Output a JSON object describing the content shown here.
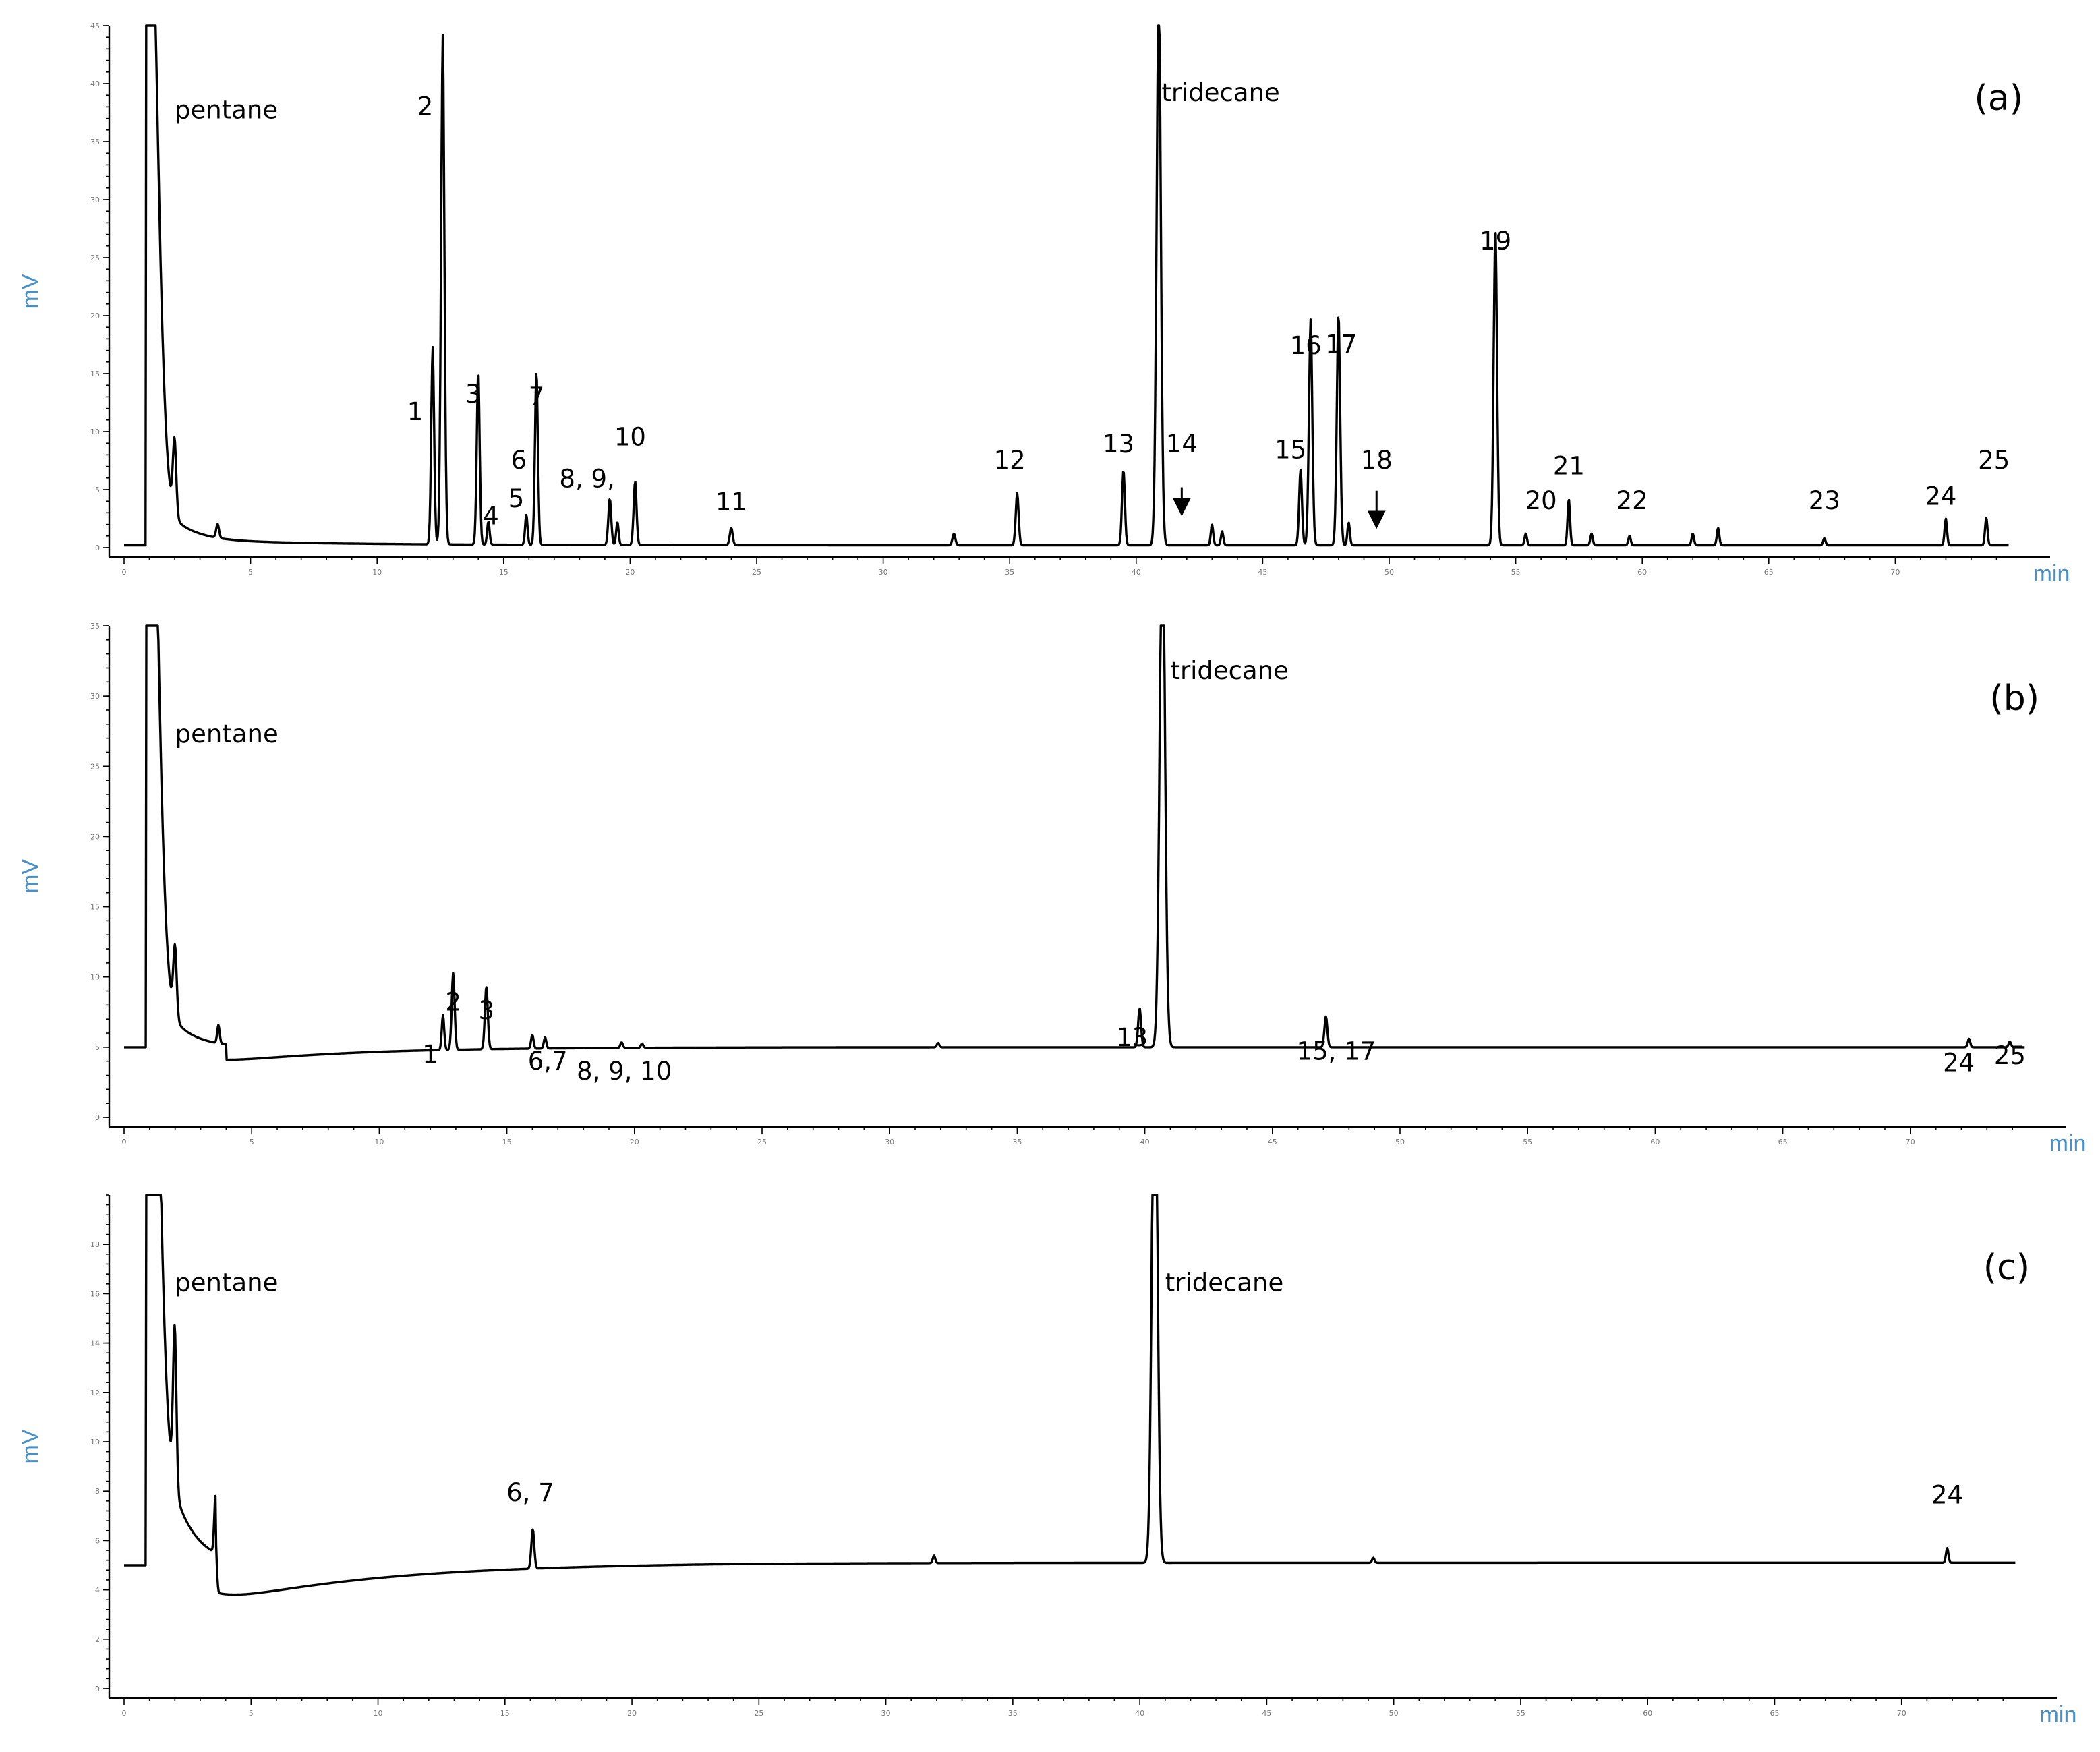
{
  "chart_data": [
    {
      "type": "line",
      "panel_label": "(a)",
      "xlabel": "min",
      "ylabel": "mV",
      "xlim": [
        0,
        75
      ],
      "ylim": [
        0,
        45
      ],
      "x_ticks": [
        0,
        5,
        10,
        15,
        20,
        25,
        30,
        35,
        40,
        45,
        50,
        55,
        60,
        65,
        70
      ],
      "y_ticks": [
        0,
        5,
        10,
        15,
        20,
        25,
        30,
        35,
        40,
        45
      ],
      "baseline": 0.2,
      "peaks": [
        {
          "rt": 1.0,
          "height": 60,
          "width": 0.35
        },
        {
          "rt": 2.0,
          "height": 6.5,
          "width": 0.07
        },
        {
          "rt": 3.7,
          "height": 1.2,
          "width": 0.06
        },
        {
          "rt": 12.2,
          "height": 17,
          "width": 0.06
        },
        {
          "rt": 12.6,
          "height": 44,
          "width": 0.07
        },
        {
          "rt": 14.0,
          "height": 15,
          "width": 0.06
        },
        {
          "rt": 14.4,
          "height": 2.0,
          "width": 0.05
        },
        {
          "rt": 15.9,
          "height": 2.6,
          "width": 0.05
        },
        {
          "rt": 16.3,
          "height": 15,
          "width": 0.06
        },
        {
          "rt": 19.2,
          "height": 4.0,
          "width": 0.06
        },
        {
          "rt": 19.5,
          "height": 2.0,
          "width": 0.05
        },
        {
          "rt": 20.2,
          "height": 5.5,
          "width": 0.06
        },
        {
          "rt": 24.0,
          "height": 1.5,
          "width": 0.06
        },
        {
          "rt": 32.8,
          "height": 1.0,
          "width": 0.06
        },
        {
          "rt": 35.3,
          "height": 4.5,
          "width": 0.06
        },
        {
          "rt": 39.5,
          "height": 6.5,
          "width": 0.06
        },
        {
          "rt": 40.9,
          "height": 48,
          "width": 0.09
        },
        {
          "rt": 43.0,
          "height": 1.8,
          "width": 0.05
        },
        {
          "rt": 43.4,
          "height": 1.2,
          "width": 0.05
        },
        {
          "rt": 46.5,
          "height": 6.5,
          "width": 0.06
        },
        {
          "rt": 46.9,
          "height": 19.5,
          "width": 0.07
        },
        {
          "rt": 48.0,
          "height": 20.0,
          "width": 0.07
        },
        {
          "rt": 48.4,
          "height": 2.0,
          "width": 0.05
        },
        {
          "rt": 54.2,
          "height": 27.5,
          "width": 0.07
        },
        {
          "rt": 55.4,
          "height": 1.0,
          "width": 0.05
        },
        {
          "rt": 57.1,
          "height": 4.0,
          "width": 0.05
        },
        {
          "rt": 58.0,
          "height": 1.0,
          "width": 0.05
        },
        {
          "rt": 59.5,
          "height": 0.8,
          "width": 0.05
        },
        {
          "rt": 62.0,
          "height": 1.0,
          "width": 0.05
        },
        {
          "rt": 63.0,
          "height": 1.5,
          "width": 0.05
        },
        {
          "rt": 67.2,
          "height": 0.6,
          "width": 0.05
        },
        {
          "rt": 72.0,
          "height": 2.3,
          "width": 0.05
        },
        {
          "rt": 73.6,
          "height": 2.4,
          "width": 0.05
        }
      ],
      "annotations": [
        {
          "text": "pentane",
          "x": 2.0,
          "y": 37
        },
        {
          "text": "2",
          "x": 11.9,
          "y": 37.3
        },
        {
          "text": "1",
          "x": 11.5,
          "y": 11
        },
        {
          "text": "3",
          "x": 13.8,
          "y": 12.5
        },
        {
          "text": "4",
          "x": 14.5,
          "y": 2
        },
        {
          "text": "5",
          "x": 15.5,
          "y": 3.5
        },
        {
          "text": "6",
          "x": 15.6,
          "y": 6.8
        },
        {
          "text": "7",
          "x": 16.3,
          "y": 12.3
        },
        {
          "text": "8, 9,",
          "x": 18.3,
          "y": 5.2
        },
        {
          "text": "10",
          "x": 20.0,
          "y": 8.8
        },
        {
          "text": "11",
          "x": 24.0,
          "y": 3.2
        },
        {
          "text": "12",
          "x": 35.0,
          "y": 6.8
        },
        {
          "text": "13",
          "x": 39.3,
          "y": 8.2
        },
        {
          "text": "tridecane",
          "x": 41.0,
          "y": 38.5
        },
        {
          "text": "14",
          "x": 41.8,
          "y": 8.2
        },
        {
          "text": "15",
          "x": 46.1,
          "y": 7.7
        },
        {
          "text": "16",
          "x": 46.7,
          "y": 16.7
        },
        {
          "text": "17",
          "x": 48.1,
          "y": 16.8
        },
        {
          "text": "18",
          "x": 49.5,
          "y": 6.8
        },
        {
          "text": "19",
          "x": 54.2,
          "y": 25.7
        },
        {
          "text": "20",
          "x": 56.0,
          "y": 3.3
        },
        {
          "text": "21",
          "x": 57.1,
          "y": 6.3
        },
        {
          "text": "22",
          "x": 59.6,
          "y": 3.3
        },
        {
          "text": "23",
          "x": 67.2,
          "y": 3.3
        },
        {
          "text": "24",
          "x": 71.8,
          "y": 3.7
        },
        {
          "text": "25",
          "x": 73.9,
          "y": 6.8
        }
      ],
      "arrows": [
        {
          "x": 41.8,
          "y_from": 5.2,
          "y_to": 2.9
        },
        {
          "x": 49.5,
          "y_from": 4.9,
          "y_to": 1.8
        }
      ]
    },
    {
      "type": "line",
      "panel_label": "(b)",
      "xlabel": "min",
      "ylabel": "mV",
      "xlim": [
        0,
        75
      ],
      "ylim": [
        0,
        35
      ],
      "x_ticks": [
        0,
        5,
        10,
        15,
        20,
        25,
        30,
        35,
        40,
        45,
        50,
        55,
        60,
        65,
        70
      ],
      "y_ticks": [
        0,
        5,
        10,
        15,
        20,
        25,
        30,
        35
      ],
      "baseline": 5.0,
      "peaks": [
        {
          "rt": 1.0,
          "height": 50,
          "width": 0.35
        },
        {
          "rt": 2.0,
          "height": 5.0,
          "width": 0.07
        },
        {
          "rt": 3.7,
          "height": 1.3,
          "width": 0.05
        },
        {
          "rt": 12.5,
          "height": 2.5,
          "width": 0.05
        },
        {
          "rt": 12.9,
          "height": 5.5,
          "width": 0.06
        },
        {
          "rt": 14.2,
          "height": 4.5,
          "width": 0.06
        },
        {
          "rt": 16.0,
          "height": 1.0,
          "width": 0.05
        },
        {
          "rt": 16.5,
          "height": 0.8,
          "width": 0.05
        },
        {
          "rt": 19.5,
          "height": 0.4,
          "width": 0.05
        },
        {
          "rt": 20.3,
          "height": 0.3,
          "width": 0.05
        },
        {
          "rt": 31.9,
          "height": 0.3,
          "width": 0.05
        },
        {
          "rt": 39.8,
          "height": 2.8,
          "width": 0.06
        },
        {
          "rt": 40.7,
          "height": 40,
          "width": 0.11
        },
        {
          "rt": 47.1,
          "height": 2.2,
          "width": 0.06
        },
        {
          "rt": 72.3,
          "height": 0.6,
          "width": 0.05
        },
        {
          "rt": 73.9,
          "height": 0.4,
          "width": 0.05
        }
      ],
      "annotations": [
        {
          "text": "pentane",
          "x": 2.0,
          "y": 26.7
        },
        {
          "text": "tridecane",
          "x": 41.0,
          "y": 31.2
        },
        {
          "text": "1",
          "x": 12.0,
          "y": 3.9
        },
        {
          "text": "2",
          "x": 12.9,
          "y": 7.6
        },
        {
          "text": "3",
          "x": 14.2,
          "y": 7.0
        },
        {
          "text": "6,7",
          "x": 16.6,
          "y": 3.4
        },
        {
          "text": "8, 9, 10",
          "x": 19.6,
          "y": 2.7
        },
        {
          "text": "13",
          "x": 39.5,
          "y": 5.1
        },
        {
          "text": "15, 17",
          "x": 47.5,
          "y": 4.1
        },
        {
          "text": "24",
          "x": 71.9,
          "y": 3.3
        },
        {
          "text": "25",
          "x": 73.9,
          "y": 3.8
        }
      ],
      "arrows": []
    },
    {
      "type": "line",
      "panel_label": "(c)",
      "xlabel": "min",
      "ylabel": "mV",
      "xlim": [
        0,
        75
      ],
      "ylim": [
        0,
        20
      ],
      "x_ticks": [
        0,
        5,
        10,
        15,
        20,
        25,
        30,
        35,
        40,
        45,
        50,
        55,
        60,
        65,
        70
      ],
      "y_ticks": [
        0,
        2,
        4,
        6,
        8,
        10,
        12,
        14,
        16,
        18
      ],
      "baseline": 5.0,
      "peaks": [
        {
          "rt": 1.0,
          "height": 30,
          "width": 0.35
        },
        {
          "rt": 2.0,
          "height": 6.5,
          "width": 0.07
        },
        {
          "rt": 3.6,
          "height": 2.3,
          "width": 0.05
        },
        {
          "rt": 16.1,
          "height": 1.6,
          "width": 0.06
        },
        {
          "rt": 31.9,
          "height": 0.3,
          "width": 0.05
        },
        {
          "rt": 40.6,
          "height": 25,
          "width": 0.11
        },
        {
          "rt": 49.2,
          "height": 0.2,
          "width": 0.05
        },
        {
          "rt": 71.8,
          "height": 0.6,
          "width": 0.05
        }
      ],
      "annotations": [
        {
          "text": "pentane",
          "x": 2.0,
          "y": 16.1
        },
        {
          "text": "tridecane",
          "x": 41.0,
          "y": 16.1
        },
        {
          "text": "6, 7",
          "x": 16.0,
          "y": 7.6
        },
        {
          "text": "24",
          "x": 71.8,
          "y": 7.5
        }
      ],
      "arrows": []
    }
  ]
}
